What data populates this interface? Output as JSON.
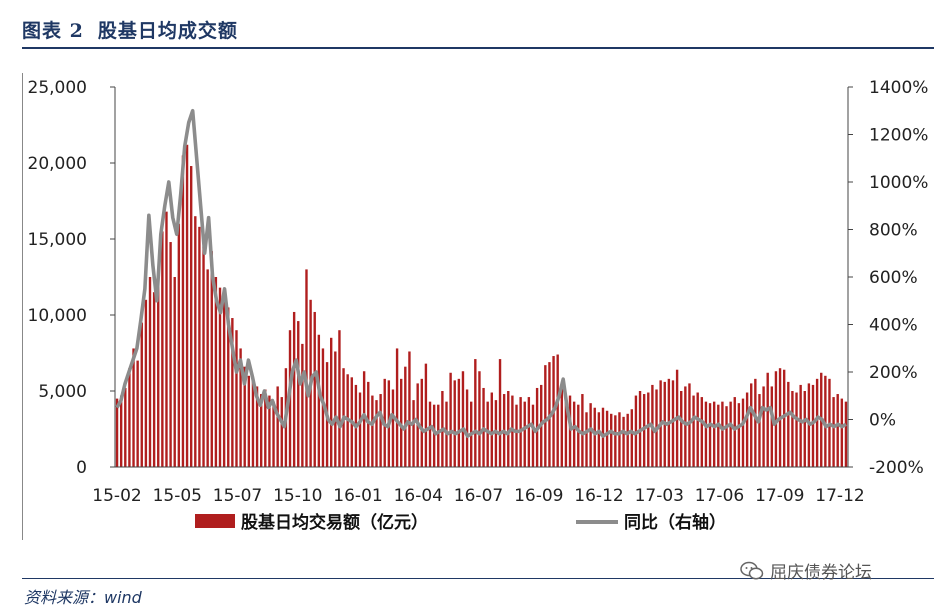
{
  "header": {
    "figure_no": "图表 2",
    "title": "股基日均成交额"
  },
  "source": "资料来源：wind",
  "watermark": "屈庆债券论坛",
  "colors": {
    "bar": "#b01e1e",
    "line": "#8c8c8c",
    "title": "#1f3864"
  },
  "chart_data": {
    "type": "bar",
    "title": "股基日均成交额",
    "x_tick_labels": [
      "15-02",
      "15-05",
      "15-07",
      "15-10",
      "16-01",
      "16-04",
      "16-07",
      "16-09",
      "16-12",
      "17-03",
      "17-06",
      "17-09",
      "17-12"
    ],
    "y_left": {
      "ticks": [
        "0",
        "5,000",
        "10,000",
        "15,000",
        "20,000",
        "25,000"
      ],
      "range": [
        0,
        25000
      ]
    },
    "y_right": {
      "ticks": [
        "-200%",
        "0%",
        "200%",
        "400%",
        "600%",
        "800%",
        "1000%",
        "1200%",
        "1400%"
      ],
      "range": [
        -200,
        1400
      ]
    },
    "legend": [
      {
        "label": "股基日均交易额（亿元）",
        "type": "bar"
      },
      {
        "label": "同比（右轴）",
        "type": "line"
      }
    ],
    "series": [
      {
        "name": "股基日均交易额（亿元）",
        "axis": "left",
        "type": "bar",
        "values": [
          4500,
          4700,
          5200,
          6500,
          7800,
          7000,
          9500,
          11000,
          12500,
          11500,
          13000,
          15500,
          16800,
          14800,
          12500,
          16000,
          20500,
          21200,
          19800,
          16500,
          15800,
          14500,
          13000,
          14200,
          12500,
          11800,
          11300,
          10500,
          9800,
          9000,
          7800,
          6600,
          6000,
          5800,
          5300,
          4800,
          5100,
          4700,
          4300,
          5300,
          4600,
          6500,
          9000,
          10200,
          9600,
          8100,
          13000,
          11000,
          10200,
          8700,
          7800,
          6900,
          8500,
          7600,
          9000,
          6500,
          6100,
          5900,
          5400,
          4900,
          6300,
          5600,
          4700,
          4400,
          4800,
          5800,
          5700,
          5100,
          7800,
          5800,
          6600,
          7600,
          4400,
          5500,
          5800,
          6800,
          4300,
          4100,
          4100,
          5000,
          4300,
          6200,
          5700,
          5800,
          6300,
          5100,
          4300,
          7100,
          6300,
          5200,
          4300,
          4900,
          4400,
          7100,
          4800,
          5000,
          4700,
          4100,
          4600,
          4300,
          4600,
          4100,
          5200,
          5400,
          6700,
          6900,
          7300,
          7400,
          5500,
          4500,
          4700,
          4300,
          4100,
          4800,
          3600,
          4200,
          3900,
          3600,
          3900,
          3700,
          3500,
          3400,
          3600,
          3300,
          3500,
          3800,
          4700,
          5000,
          4800,
          4900,
          5400,
          5100,
          5700,
          5600,
          5800,
          5700,
          6400,
          5000,
          5300,
          5500,
          4700,
          4900,
          4600,
          4300,
          4200,
          4300,
          4100,
          4300,
          4000,
          4300,
          4600,
          4200,
          4500,
          4900,
          5500,
          5800,
          4800,
          5300,
          6200,
          5300,
          6300,
          6500,
          6400,
          5600,
          5000,
          4900,
          5400,
          5000,
          5500,
          5400,
          5800,
          6200,
          6000,
          5800,
          4600,
          4800,
          4500,
          4300
        ]
      },
      {
        "name": "同比（右轴）",
        "axis": "right",
        "type": "line",
        "values": [
          50,
          80,
          150,
          200,
          250,
          300,
          420,
          550,
          860,
          650,
          500,
          780,
          900,
          1000,
          850,
          780,
          950,
          1150,
          1250,
          1300,
          1100,
          900,
          700,
          850,
          600,
          500,
          450,
          550,
          400,
          300,
          200,
          250,
          150,
          250,
          180,
          100,
          60,
          120,
          50,
          80,
          30,
          0,
          -30,
          80,
          200,
          250,
          150,
          200,
          100,
          180,
          200,
          100,
          60,
          0,
          -20,
          10,
          -30,
          10,
          0,
          -10,
          -30,
          -10,
          20,
          -10,
          -20,
          10,
          30,
          -20,
          -30,
          20,
          0,
          -20,
          -40,
          -10,
          -20,
          0,
          -30,
          -50,
          -40,
          -30,
          -60,
          -50,
          -40,
          -60,
          -50,
          -60,
          -50,
          -40,
          -70,
          -60,
          -50,
          -60,
          -40,
          -50,
          -60,
          -50,
          -60,
          -50,
          -60,
          -40,
          -50,
          -50,
          -40,
          -30,
          -20,
          -50,
          -30,
          -10,
          0,
          20,
          50,
          100,
          170,
          50,
          -40,
          -30,
          -50,
          -60,
          -50,
          -40,
          -60,
          -50,
          -70,
          -60,
          -50,
          -60,
          -60,
          -50,
          -60,
          -50,
          -60,
          -50,
          -40,
          -30,
          -20,
          -50,
          -30,
          -10,
          -20,
          -10,
          0,
          10,
          -10,
          -20,
          -10,
          10,
          0,
          -10,
          -30,
          -20,
          -30,
          -20,
          -40,
          -30,
          -20,
          -40,
          -30,
          -20,
          10,
          50,
          20,
          -10,
          50,
          40,
          50,
          -20,
          0,
          10,
          20,
          30,
          10,
          0,
          -10,
          0,
          -20,
          -10,
          10,
          0,
          -30,
          -20,
          -30,
          -20,
          -30,
          -20
        ]
      }
    ]
  }
}
